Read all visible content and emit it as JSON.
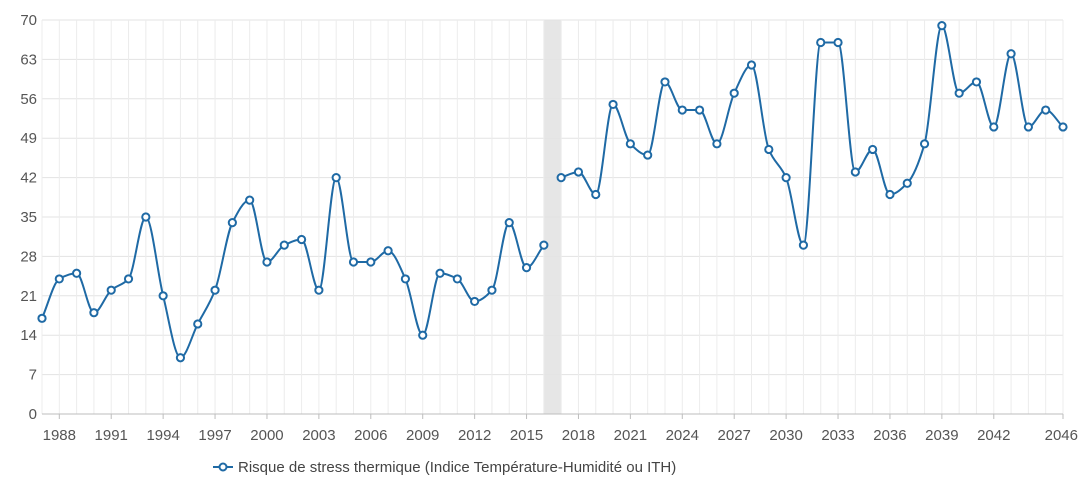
{
  "chart_data": {
    "type": "line",
    "title": "",
    "xlabel": "",
    "ylabel": "",
    "ylim": [
      0,
      70
    ],
    "xlim": [
      1987,
      2046
    ],
    "y_ticks": [
      0,
      7,
      14,
      21,
      28,
      35,
      42,
      49,
      56,
      63,
      70
    ],
    "x_ticks": [
      1988,
      1991,
      1994,
      1997,
      2000,
      2003,
      2006,
      2009,
      2012,
      2015,
      2018,
      2021,
      2024,
      2027,
      2030,
      2033,
      2036,
      2039,
      2042,
      2046
    ],
    "grid": true,
    "legend_position": "bottom",
    "gap_highlight": [
      2016,
      2017
    ],
    "series": [
      {
        "name": "Risque de stress thermique (Indice Température-Humidité ou ITH)",
        "color": "#1f6aa5",
        "segments": [
          {
            "x": [
              1987,
              1988,
              1989,
              1990,
              1991,
              1992,
              1993,
              1994,
              1995,
              1996,
              1997,
              1998,
              1999,
              2000,
              2001,
              2002,
              2003,
              2004,
              2005,
              2006,
              2007,
              2008,
              2009,
              2010,
              2011,
              2012,
              2013,
              2014,
              2015,
              2016
            ],
            "y": [
              17,
              24,
              25,
              18,
              22,
              24,
              35,
              21,
              10,
              16,
              22,
              34,
              38,
              27,
              30,
              31,
              22,
              42,
              27,
              27,
              29,
              24,
              14,
              25,
              24,
              20,
              22,
              34,
              26,
              30
            ]
          },
          {
            "x": [
              2017,
              2018,
              2019,
              2020,
              2021,
              2022,
              2023,
              2024,
              2025,
              2026,
              2027,
              2028,
              2029,
              2030,
              2031,
              2032,
              2033,
              2034,
              2035,
              2036,
              2037,
              2038,
              2039,
              2040,
              2041,
              2042,
              2043,
              2044,
              2045,
              2046
            ],
            "y": [
              42,
              43,
              39,
              55,
              48,
              46,
              59,
              54,
              54,
              48,
              57,
              62,
              47,
              42,
              30,
              66,
              66,
              43,
              47,
              39,
              41,
              48,
              69,
              57,
              59,
              51,
              64,
              51,
              54,
              51
            ]
          }
        ]
      }
    ]
  }
}
